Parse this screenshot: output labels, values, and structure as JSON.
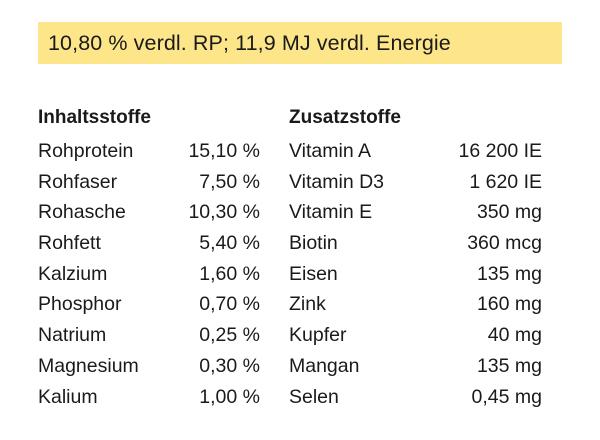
{
  "banner": "10,80 % verdl. RP; 11,9 MJ verdl. Energie",
  "ingredients": {
    "header": "Inhaltsstoffe",
    "items": [
      {
        "name": "Rohprotein",
        "value": "15,10 %"
      },
      {
        "name": "Rohfaser",
        "value": "7,50 %"
      },
      {
        "name": "Rohasche",
        "value": "10,30 %"
      },
      {
        "name": "Rohfett",
        "value": "5,40 %"
      },
      {
        "name": "Kalzium",
        "value": "1,60 %"
      },
      {
        "name": "Phosphor",
        "value": "0,70 %"
      },
      {
        "name": "Natrium",
        "value": "0,25 %"
      },
      {
        "name": "Magnesium",
        "value": "0,30 %"
      },
      {
        "name": "Kalium",
        "value": "1,00 %"
      }
    ]
  },
  "additives": {
    "header": "Zusatzstoffe",
    "items": [
      {
        "name": "Vitamin A",
        "value": "16 200 IE"
      },
      {
        "name": "Vitamin D3",
        "value": "1 620 IE"
      },
      {
        "name": "Vitamin E",
        "value": "350 mg"
      },
      {
        "name": "Biotin",
        "value": "360 mcg"
      },
      {
        "name": "Eisen",
        "value": "135 mg"
      },
      {
        "name": "Zink",
        "value": "160 mg"
      },
      {
        "name": "Kupfer",
        "value": "40 mg"
      },
      {
        "name": "Mangan",
        "value": "135 mg"
      },
      {
        "name": "Selen",
        "value": "0,45 mg"
      }
    ]
  }
}
